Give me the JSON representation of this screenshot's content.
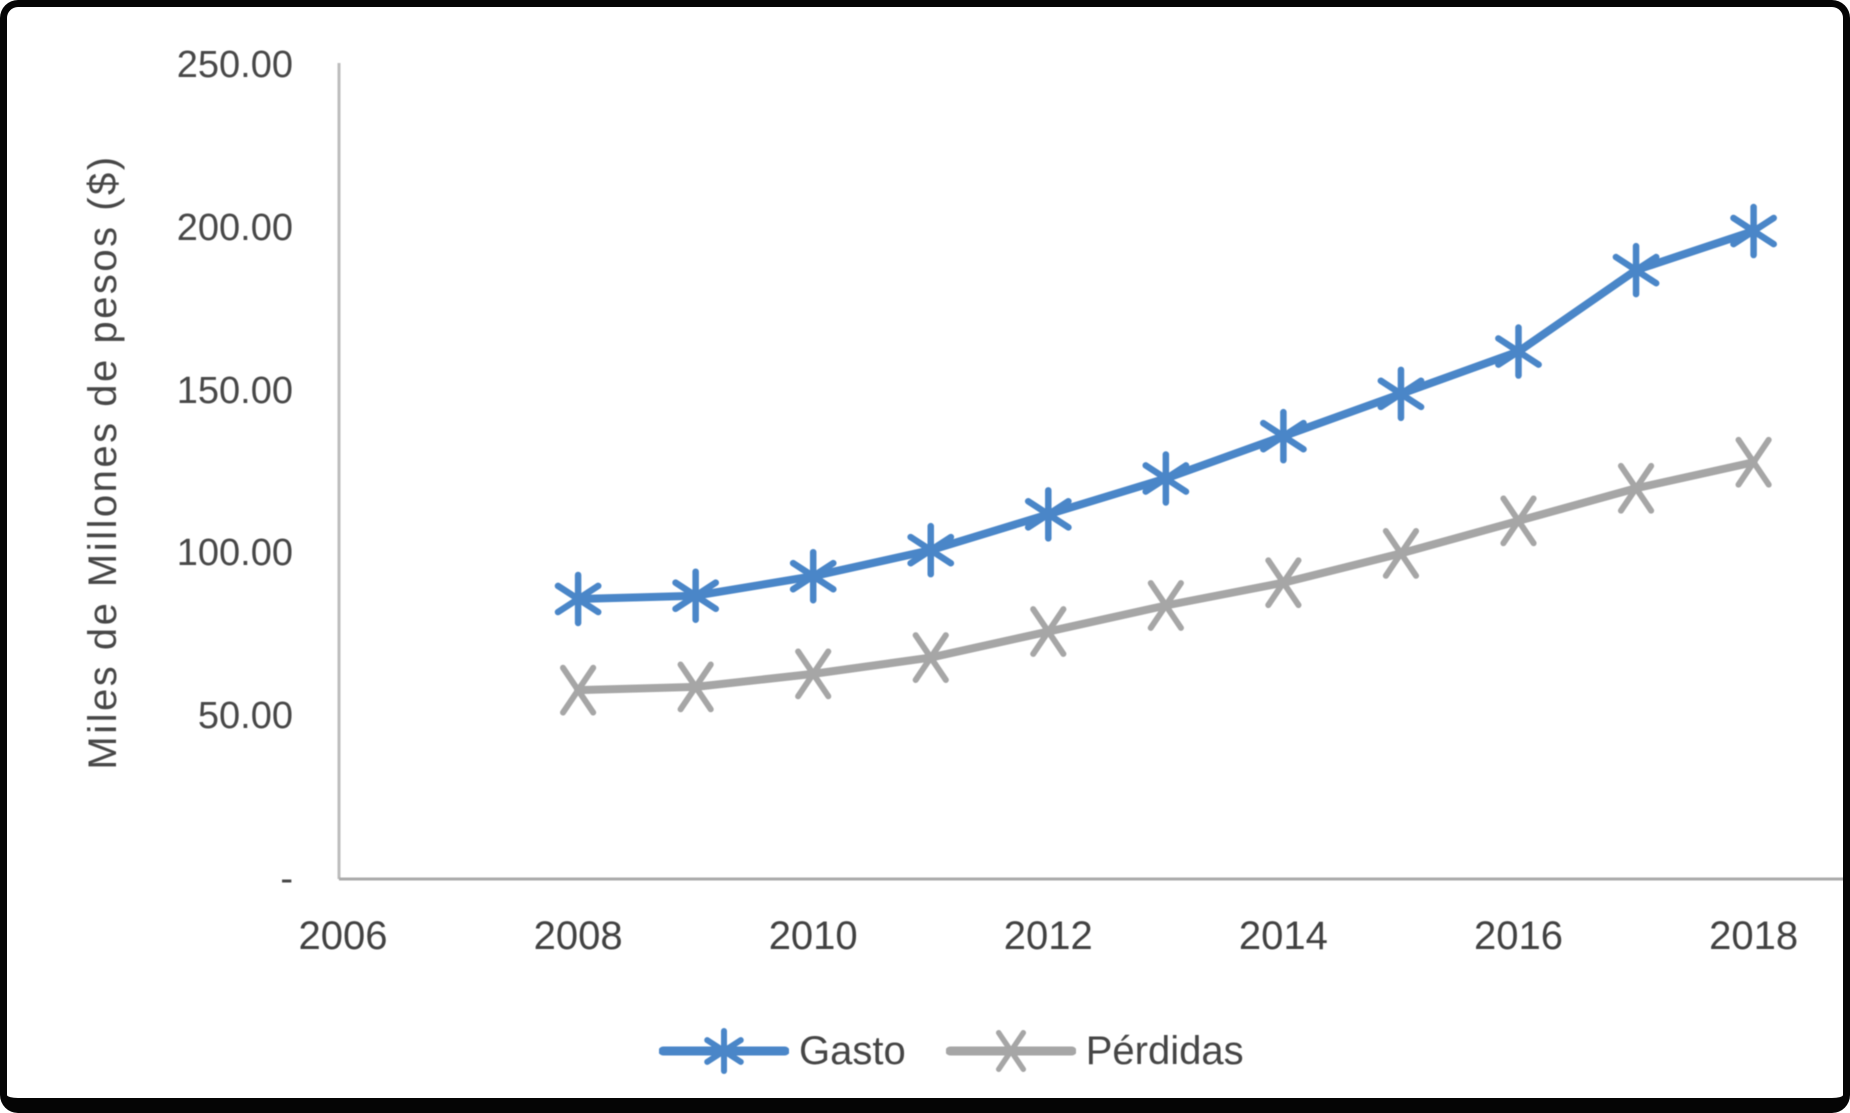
{
  "figure": {
    "background": "#ffffff",
    "frame_color": "#050505",
    "axis_color": "#bdbdbd",
    "text_color": "#474747"
  },
  "chart_data": {
    "type": "line",
    "title": "",
    "xlabel": "",
    "ylabel": "Miles de Millones de pesos ($)",
    "ylim": [
      0,
      250
    ],
    "xlim": [
      2006,
      2018
    ],
    "grid": false,
    "legend_position": "bottom-center",
    "x": [
      2008,
      2009,
      2010,
      2011,
      2012,
      2013,
      2014,
      2015,
      2016,
      2017,
      2018
    ],
    "series": [
      {
        "name": "Gasto",
        "color": "#4a86c8",
        "marker": "asterisk",
        "values": [
          86,
          87,
          93,
          101,
          112,
          123,
          136,
          149,
          162,
          187,
          199
        ]
      },
      {
        "name": "Pérdidas",
        "color": "#a6a6a6",
        "marker": "x",
        "values": [
          58,
          59,
          63,
          68,
          76,
          84,
          91,
          100,
          110,
          120,
          128
        ]
      }
    ],
    "y_ticks": [
      {
        "label": "250.00",
        "value": 250
      },
      {
        "label": "200.00",
        "value": 200
      },
      {
        "label": "150.00",
        "value": 150
      },
      {
        "label": "100.00",
        "value": 100
      },
      {
        "label": "50.00",
        "value": 50
      },
      {
        "label": "-",
        "value": 0
      }
    ],
    "x_ticks": [
      {
        "label": "2006",
        "value": 2006
      },
      {
        "label": "2008",
        "value": 2008
      },
      {
        "label": "2010",
        "value": 2010
      },
      {
        "label": "2012",
        "value": 2012
      },
      {
        "label": "2014",
        "value": 2014
      },
      {
        "label": "2016",
        "value": 2016
      },
      {
        "label": "2018",
        "value": 2018
      }
    ]
  }
}
